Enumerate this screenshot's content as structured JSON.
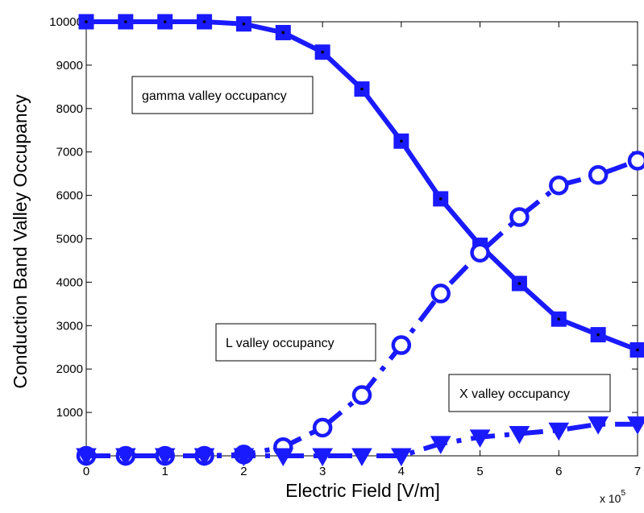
{
  "chart_data": {
    "type": "line",
    "xlabel": "Electric Field [V/m]",
    "ylabel": "Conduction Band Valley Occupancy",
    "x_multiplier": {
      "base": "x 10",
      "exponent": "5"
    },
    "x": [
      0,
      0.5,
      1,
      1.5,
      2,
      2.5,
      3,
      3.5,
      4,
      4.5,
      5,
      5.5,
      6,
      6.5,
      7
    ],
    "xlim": [
      0,
      7
    ],
    "ylim": [
      0,
      10000
    ],
    "x_ticks": [
      "0",
      "1",
      "2",
      "3",
      "4",
      "5",
      "6",
      "7"
    ],
    "y_ticks": [
      "0",
      "1000",
      "2000",
      "3000",
      "4000",
      "5000",
      "6000",
      "7000",
      "8000",
      "9000",
      "10000"
    ],
    "grid": false,
    "series": [
      {
        "marker": "square",
        "line": "solid",
        "color": "#1a1aff",
        "values": [
          10000,
          10000,
          10000,
          10000,
          9950,
          9750,
          9300,
          8450,
          7250,
          5920,
          4850,
          3970,
          3150,
          2790,
          2440
        ]
      },
      {
        "marker": "circle",
        "line": "dashdot",
        "color": "#1a1aff",
        "values": [
          0,
          0,
          0,
          0,
          30,
          200,
          650,
          1400,
          2550,
          3740,
          4680,
          5500,
          6230,
          6470,
          6800
        ]
      },
      {
        "marker": "triangle-down",
        "line": "dashdot",
        "color": "#1a1aff",
        "values": [
          0,
          0,
          0,
          0,
          0,
          0,
          0,
          0,
          0,
          280,
          430,
          510,
          590,
          730,
          730
        ]
      }
    ],
    "annotations": [
      {
        "text": "gamma valley occupancy"
      },
      {
        "text": "L valley occupancy"
      },
      {
        "text": "X valley occupancy"
      }
    ]
  }
}
